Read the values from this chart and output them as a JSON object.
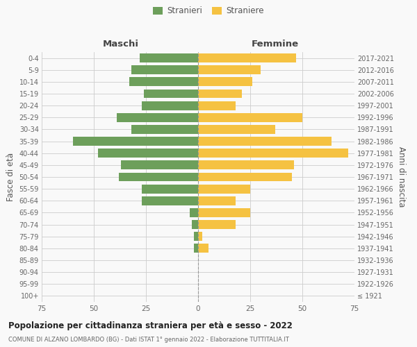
{
  "age_groups": [
    "100+",
    "95-99",
    "90-94",
    "85-89",
    "80-84",
    "75-79",
    "70-74",
    "65-69",
    "60-64",
    "55-59",
    "50-54",
    "45-49",
    "40-44",
    "35-39",
    "30-34",
    "25-29",
    "20-24",
    "15-19",
    "10-14",
    "5-9",
    "0-4"
  ],
  "birth_years": [
    "≤ 1921",
    "1922-1926",
    "1927-1931",
    "1932-1936",
    "1937-1941",
    "1942-1946",
    "1947-1951",
    "1952-1956",
    "1957-1961",
    "1962-1966",
    "1967-1971",
    "1972-1976",
    "1977-1981",
    "1982-1986",
    "1987-1991",
    "1992-1996",
    "1997-2001",
    "2002-2006",
    "2007-2011",
    "2012-2016",
    "2017-2021"
  ],
  "maschi": [
    0,
    0,
    0,
    0,
    2,
    2,
    3,
    4,
    27,
    27,
    38,
    37,
    48,
    60,
    32,
    39,
    27,
    26,
    33,
    32,
    28
  ],
  "femmine": [
    0,
    0,
    0,
    0,
    5,
    2,
    18,
    25,
    18,
    25,
    45,
    46,
    72,
    64,
    37,
    50,
    18,
    21,
    26,
    30,
    47
  ],
  "male_color": "#6d9f5b",
  "female_color": "#f5c242",
  "background_color": "#f9f9f9",
  "grid_color": "#cccccc",
  "center_line_color": "#999999",
  "bar_height": 0.75,
  "xlim": 75,
  "title": "Popolazione per cittadinanza straniera per età e sesso - 2022",
  "subtitle": "COMUNE DI ALZANO LOMBARDO (BG) - Dati ISTAT 1° gennaio 2022 - Elaborazione TUTTITALIA.IT",
  "ylabel_left": "Fasce di età",
  "ylabel_right": "Anni di nascita",
  "header_maschi": "Maschi",
  "header_femmine": "Femmine",
  "legend_male": "Stranieri",
  "legend_female": "Straniere"
}
